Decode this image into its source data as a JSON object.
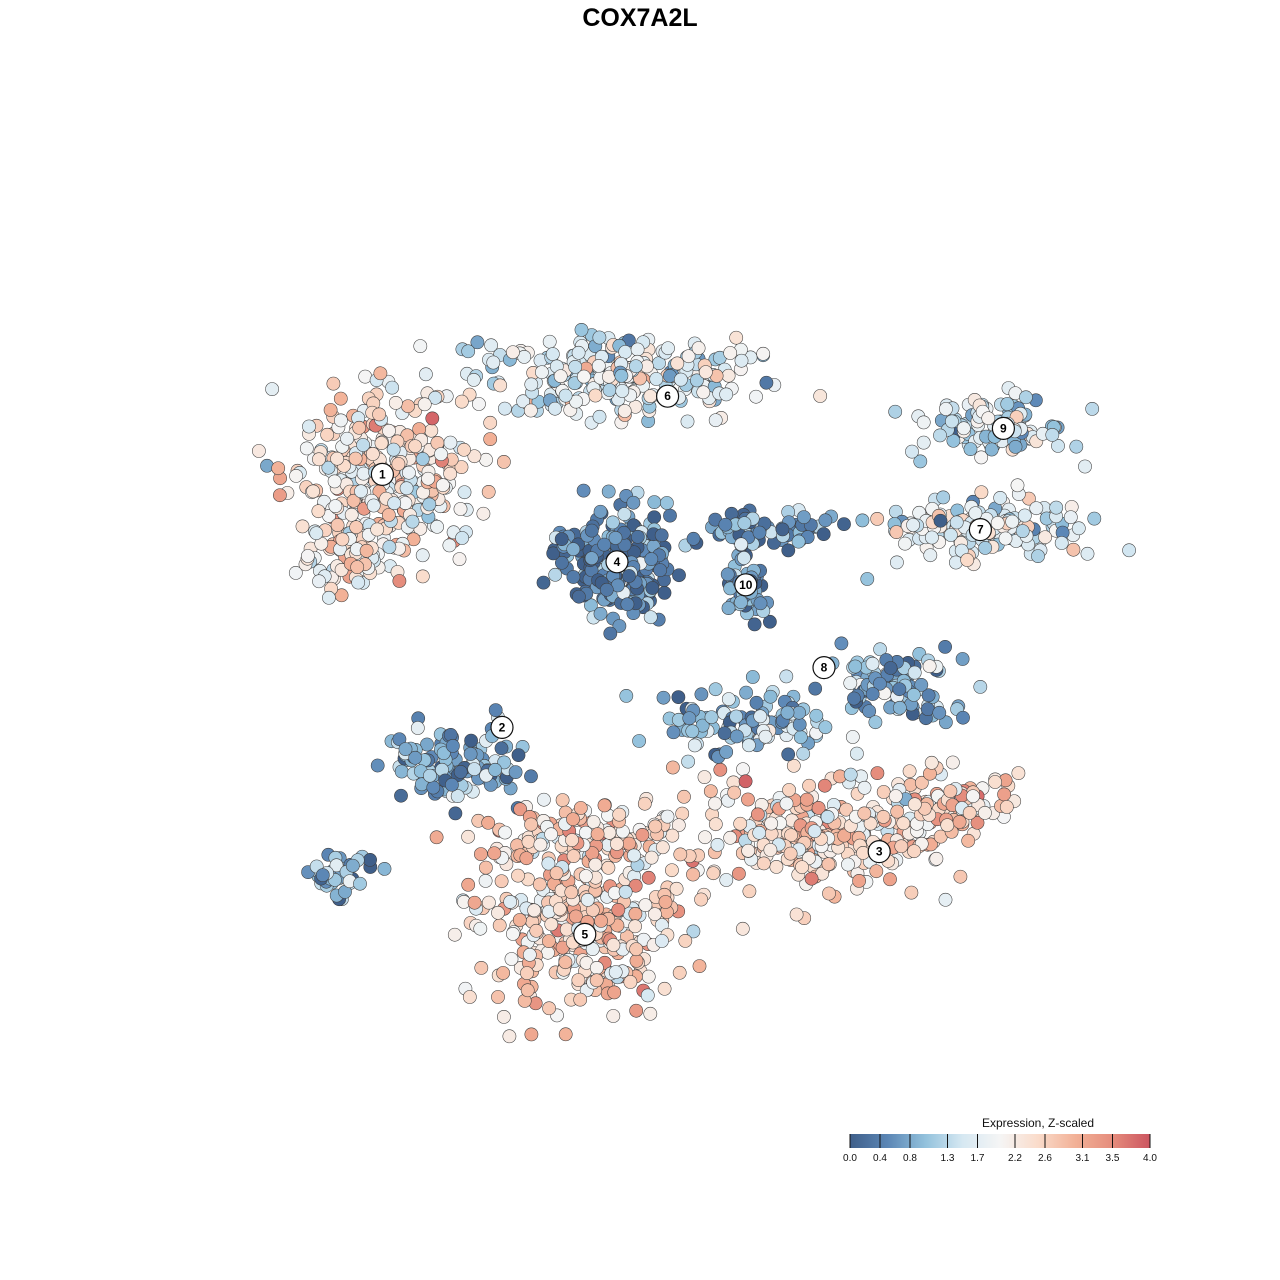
{
  "title": "COX7A2L",
  "chart_data": {
    "type": "scatter",
    "title": "COX7A2L",
    "xlabel": "",
    "ylabel": "",
    "grid": false,
    "legend": {
      "title": "Expression, Z-scaled",
      "placement": "bottom-right",
      "range": [
        0.0,
        4.0
      ],
      "ticks": [
        0.0,
        0.4,
        0.8,
        1.3,
        1.7,
        2.2,
        2.6,
        3.1,
        3.5,
        4.0
      ],
      "tick_labels": [
        "0.0",
        "0.4",
        "0.8",
        "1.3",
        "1.7",
        "2.2",
        "2.6",
        "3.1",
        "3.5",
        "4.0"
      ],
      "colors": [
        "#3f5f8a",
        "#5b86b5",
        "#92c1dc",
        "#d6e8f2",
        "#f5f5f5",
        "#fadccb",
        "#f2b197",
        "#e58c7c",
        "#cc5560"
      ]
    },
    "clusters": [
      {
        "label": "1",
        "x": -28.0,
        "y": 18.0,
        "mean_expression": 2.3
      },
      {
        "label": "2",
        "x": -15.0,
        "y": -9.5,
        "mean_expression": 0.9
      },
      {
        "label": "3",
        "x": 26.0,
        "y": -23.0,
        "mean_expression": 2.5
      },
      {
        "label": "4",
        "x": -2.5,
        "y": 8.5,
        "mean_expression": 0.4
      },
      {
        "label": "5",
        "x": -6.0,
        "y": -32.0,
        "mean_expression": 2.5
      },
      {
        "label": "6",
        "x": 3.0,
        "y": 26.5,
        "mean_expression": 1.7
      },
      {
        "label": "7",
        "x": 37.0,
        "y": 12.0,
        "mean_expression": 1.7
      },
      {
        "label": "8",
        "x": 20.0,
        "y": -3.0,
        "mean_expression": 0.9
      },
      {
        "label": "9",
        "x": 39.5,
        "y": 23.0,
        "mean_expression": 1.5
      },
      {
        "label": "10",
        "x": 11.5,
        "y": 6.0,
        "mean_expression": 0.6
      }
    ]
  }
}
